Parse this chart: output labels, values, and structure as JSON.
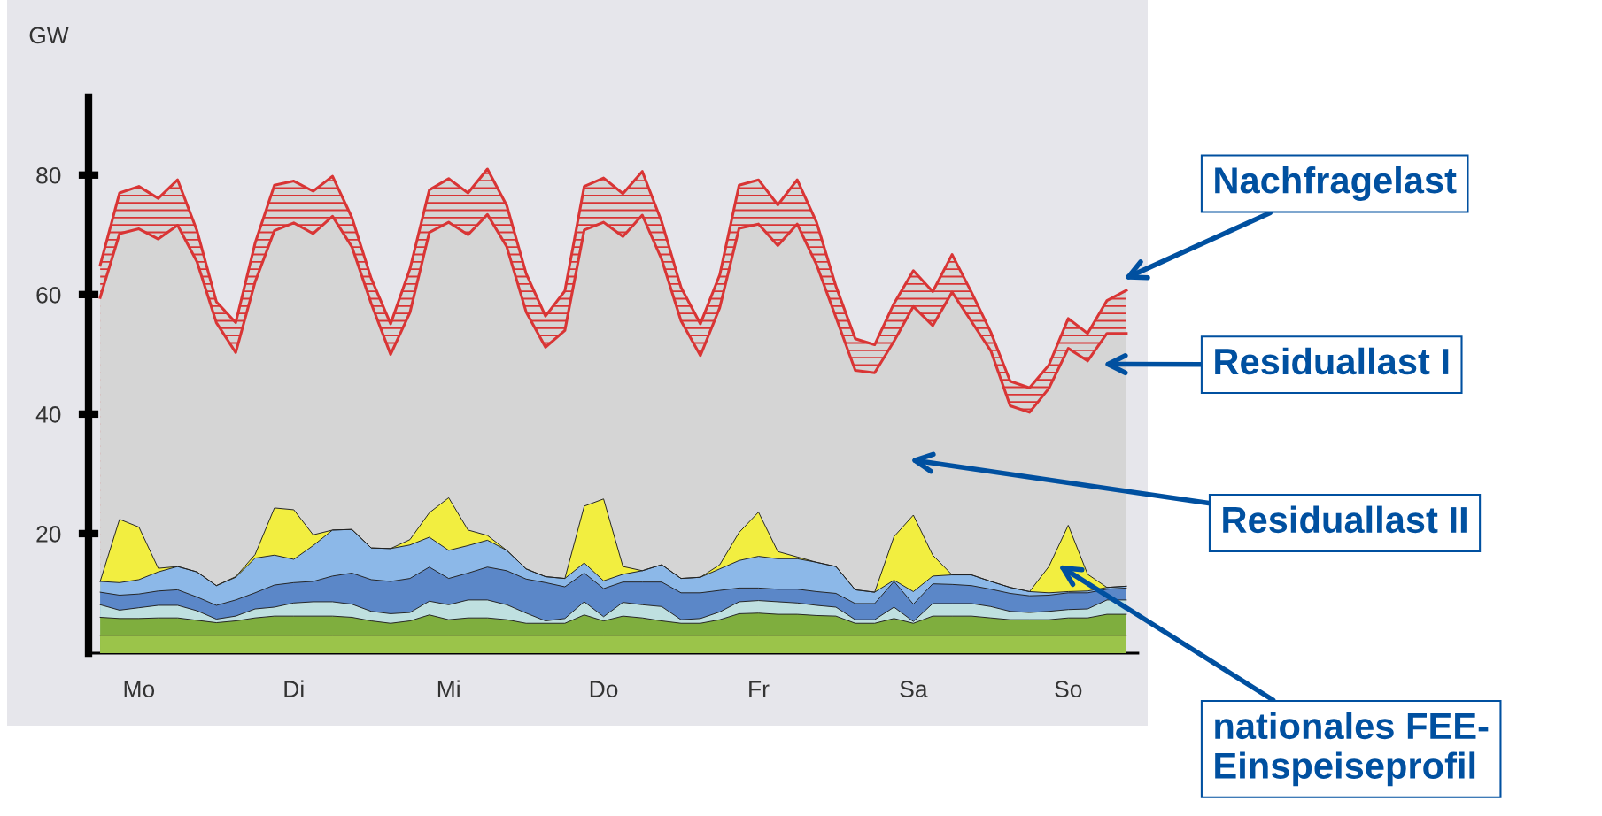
{
  "chart_data": {
    "type": "area",
    "ylabel": "GW",
    "ylim": [
      0,
      93
    ],
    "yticks": [
      20,
      40,
      60,
      80
    ],
    "categories": [
      null,
      null,
      "Mo",
      null,
      null,
      null,
      null,
      null,
      null,
      null,
      "Di",
      null,
      null,
      null,
      null,
      null,
      null,
      null,
      "Mi",
      null,
      null,
      null,
      null,
      null,
      null,
      null,
      "Do",
      null,
      null,
      null,
      null,
      null,
      null,
      null,
      "Fr",
      null,
      null,
      null,
      null,
      null,
      null,
      null,
      "Sa",
      null,
      null,
      null,
      null,
      null,
      null,
      null,
      "So",
      null,
      null,
      null
    ],
    "series": [
      {
        "color": "#d93535",
        "values": [
          64.9,
          77.0,
          78.1,
          76.1,
          79.2,
          70.7,
          58.8,
          55.3,
          68.6,
          78.3,
          79.0,
          77.3,
          79.8,
          72.9,
          62.7,
          55.1,
          64.3,
          77.5,
          79.4,
          77.0,
          81.0,
          74.9,
          63.5,
          56.4,
          60.6,
          78.1,
          79.5,
          76.9,
          80.6,
          72.2,
          61.2,
          55.1,
          63.3,
          78.3,
          79.2,
          75.0,
          79.2,
          72.1,
          61.4,
          52.6,
          51.6,
          58.5,
          64.0,
          60.5,
          66.7,
          60.4,
          53.7,
          45.5,
          44.4,
          48.2,
          56.0,
          53.5,
          59.0,
          60.7
        ]
      },
      {
        "color": "#d5d5d5",
        "values": [
          59.5,
          70.2,
          71.0,
          69.3,
          71.6,
          65.5,
          55.3,
          50.3,
          62.1,
          70.7,
          72.0,
          70.2,
          73.1,
          68.0,
          58.5,
          50.0,
          57.0,
          70.4,
          72.1,
          70.0,
          73.4,
          68.0,
          57.1,
          51.2,
          54.0,
          70.8,
          72.1,
          69.7,
          73.3,
          65.9,
          55.6,
          49.8,
          57.8,
          71.1,
          71.8,
          68.2,
          71.8,
          65.0,
          56.2,
          47.3,
          46.9,
          52.2,
          58.0,
          54.8,
          60.4,
          55.5,
          50.6,
          41.4,
          40.3,
          44.3,
          51.0,
          48.9,
          53.5,
          53.5
        ]
      },
      {
        "color": "#f2ee40",
        "values": [
          12.0,
          22.4,
          21.1,
          14.2,
          14.5,
          13.6,
          11.3,
          12.8,
          16.5,
          24.3,
          24.0,
          19.8,
          20.6,
          20.7,
          17.6,
          17.5,
          19.0,
          23.5,
          26.0,
          20.6,
          19.7,
          17.2,
          14.1,
          12.8,
          12.5,
          24.6,
          25.8,
          14.5,
          13.8,
          14.8,
          12.5,
          12.7,
          14.8,
          20.2,
          23.6,
          17.0,
          16.1,
          15.2,
          14.5,
          10.6,
          10.2,
          19.5,
          23.1,
          16.4,
          13.1,
          13.1,
          12.0,
          11.0,
          10.3,
          14.5,
          21.4,
          13.2,
          11.0,
          11.2
        ]
      },
      {
        "color": "#8cb8e8",
        "values": [
          12.0,
          11.8,
          12.3,
          13.6,
          14.5,
          13.6,
          11.3,
          12.7,
          15.9,
          16.4,
          15.7,
          18.0,
          20.6,
          20.7,
          17.6,
          17.5,
          18.1,
          19.4,
          17.2,
          18.0,
          18.9,
          17.2,
          14.1,
          12.8,
          12.5,
          15.1,
          12.1,
          13.2,
          13.8,
          14.8,
          12.5,
          12.7,
          14.1,
          15.5,
          16.2,
          15.8,
          15.8,
          15.2,
          14.5,
          10.6,
          10.2,
          12.2,
          10.3,
          12.9,
          13.1,
          13.1,
          12.0,
          11.0,
          10.3,
          10.1,
          10.3,
          10.4,
          11.0,
          11.2
        ]
      },
      {
        "color": "#5b87c8",
        "values": [
          10.2,
          9.7,
          9.9,
          10.4,
          10.6,
          9.4,
          8.0,
          8.9,
          10.1,
          11.4,
          11.8,
          12.0,
          12.9,
          13.4,
          12.3,
          12.0,
          12.5,
          14.4,
          12.5,
          13.4,
          14.4,
          13.8,
          12.4,
          11.8,
          11.1,
          13.4,
          10.8,
          11.9,
          11.9,
          11.9,
          10.1,
          10.1,
          10.5,
          10.9,
          10.9,
          10.7,
          10.7,
          10.3,
          10.0,
          8.3,
          8.3,
          12.0,
          8.2,
          11.6,
          11.5,
          11.3,
          10.7,
          10.0,
          9.6,
          9.7,
          10.1,
          10.1,
          10.7,
          10.9
        ]
      },
      {
        "color": "#bfe0e0",
        "values": [
          8.1,
          7.2,
          7.6,
          8.0,
          8.0,
          7.1,
          5.7,
          6.2,
          7.4,
          7.7,
          8.4,
          8.6,
          8.6,
          8.2,
          7.0,
          6.6,
          6.8,
          8.7,
          8.1,
          8.9,
          8.9,
          8.1,
          6.7,
          5.4,
          5.8,
          8.6,
          6.1,
          8.5,
          8.1,
          7.8,
          5.6,
          5.8,
          6.9,
          8.6,
          8.8,
          8.6,
          8.4,
          8.0,
          7.7,
          5.6,
          5.6,
          7.7,
          5.3,
          8.3,
          8.3,
          8.3,
          7.8,
          7.0,
          6.8,
          7.0,
          7.3,
          7.4,
          8.9,
          8.9
        ]
      },
      {
        "color": "#7fae3e",
        "values": [
          6.0,
          5.8,
          5.8,
          5.9,
          5.9,
          5.5,
          5.1,
          5.4,
          5.9,
          6.2,
          6.2,
          6.2,
          6.2,
          6.0,
          5.4,
          5.0,
          5.4,
          6.4,
          5.6,
          5.9,
          5.9,
          5.6,
          5.0,
          5.0,
          5.0,
          6.4,
          5.4,
          6.2,
          5.9,
          5.4,
          5.0,
          5.0,
          5.6,
          6.6,
          6.7,
          6.5,
          6.5,
          6.3,
          6.2,
          5.0,
          5.0,
          5.8,
          5.0,
          6.2,
          6.2,
          6.2,
          5.9,
          5.6,
          5.6,
          5.6,
          5.9,
          5.9,
          6.5,
          6.5
        ]
      },
      {
        "color": "#9bc44a",
        "values": [
          3.0,
          3.0,
          3.0,
          3.0,
          3.0,
          3.0,
          3.0,
          3.0,
          3.0,
          3.0,
          3.0,
          3.0,
          3.0,
          3.0,
          3.0,
          3.0,
          3.0,
          3.0,
          3.0,
          3.0,
          3.0,
          3.0,
          3.0,
          3.0,
          3.0,
          3.0,
          3.0,
          3.0,
          3.0,
          3.0,
          3.0,
          3.0,
          3.0,
          3.0,
          3.0,
          3.0,
          3.0,
          3.0,
          3.0,
          3.0,
          3.0,
          3.0,
          3.0,
          3.0,
          3.0,
          3.0,
          3.0,
          3.0,
          3.0,
          3.0,
          3.0,
          3.0,
          3.0,
          3.0
        ]
      }
    ],
    "annotations": [
      "Nachfragelast",
      "Residuallast I",
      "Residuallast II",
      "nationales FEE-\nEinspeiseprofil"
    ]
  }
}
